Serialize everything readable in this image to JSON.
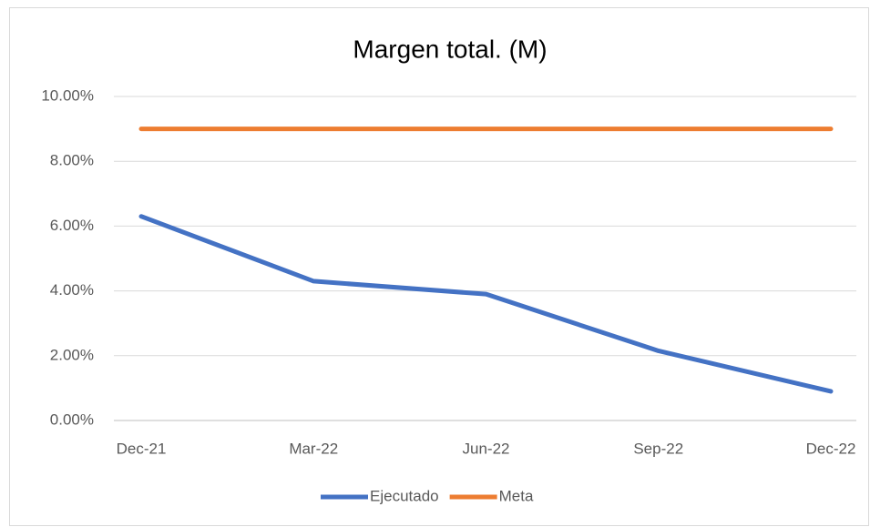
{
  "chart_data": {
    "type": "line",
    "title": "Margen total. (M)",
    "categories": [
      "Dec-21",
      "Mar-22",
      "Jun-22",
      "Sep-22",
      "Dec-22"
    ],
    "series": [
      {
        "name": "Ejecutado",
        "color": "#4472c4",
        "values": [
          6.3,
          4.3,
          3.9,
          2.15,
          0.9
        ]
      },
      {
        "name": "Meta",
        "color": "#ed7d31",
        "values": [
          9,
          9,
          9,
          9,
          9
        ]
      }
    ],
    "ylim": [
      0,
      10
    ],
    "yticks": [
      {
        "value": 0,
        "label": "0.00%"
      },
      {
        "value": 2,
        "label": "2.00%"
      },
      {
        "value": 4,
        "label": "4.00%"
      },
      {
        "value": 6,
        "label": "6.00%"
      },
      {
        "value": 8,
        "label": "8.00%"
      },
      {
        "value": 10,
        "label": "10.00%"
      }
    ],
    "grid": true,
    "legend": "bottom"
  }
}
